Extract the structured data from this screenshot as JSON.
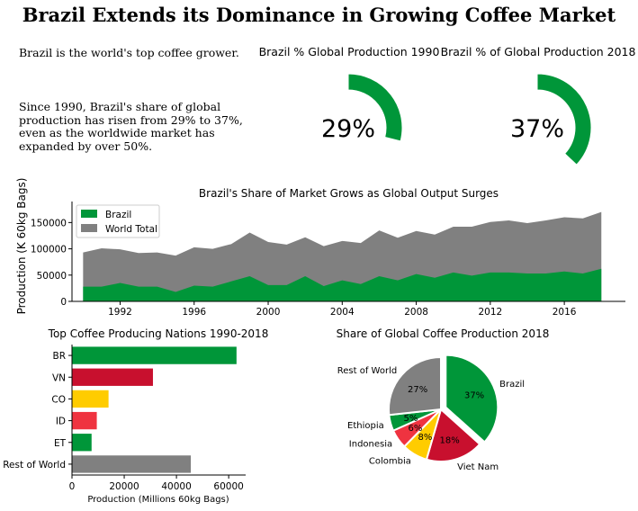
{
  "title": "Brazil Extends its Dominance in Growing Coffee Market",
  "intro": "Brazil is the world's top coffee grower.",
  "body": "Since 1990, Brazil's share of global production has risen from 29% to 37%, even as the worldwide market has expanded by over 50%.",
  "colors": {
    "green": "#009639",
    "red": "#c8102e",
    "yellow": "#ffcc00",
    "light_red": "#ef3340",
    "gray": "#808080"
  },
  "chart_data": [
    {
      "type": "pie",
      "style": "partial-ring",
      "title": "Brazil % Global Production 1990",
      "value": 29,
      "label": "29%",
      "color": "#009639"
    },
    {
      "type": "pie",
      "style": "partial-ring",
      "title": "Brazil % of Global Production 2018",
      "value": 37,
      "label": "37%",
      "color": "#009639"
    },
    {
      "type": "area",
      "title": "Brazil's Share of Market Grows as Global Output Surges",
      "ylabel": "Production (K 60kg Bags)",
      "xlabel": "",
      "x": [
        1990,
        1991,
        1992,
        1993,
        1994,
        1995,
        1996,
        1997,
        1998,
        1999,
        2000,
        2001,
        2002,
        2003,
        2004,
        2005,
        2006,
        2007,
        2008,
        2009,
        2010,
        2011,
        2012,
        2013,
        2014,
        2015,
        2016,
        2017,
        2018
      ],
      "xticks": [
        1992,
        1996,
        2000,
        2004,
        2008,
        2012,
        2016
      ],
      "yticks": [
        0,
        50000,
        100000,
        150000
      ],
      "ytick_labels": [
        "0",
        "50000",
        "100000",
        "150000"
      ],
      "xlim": [
        1989.4,
        2019.3
      ],
      "ylim": [
        0,
        190000
      ],
      "legend_placement": "upper-left",
      "series": [
        {
          "name": "Brazil",
          "color": "#009639",
          "values": [
            28000,
            28000,
            35000,
            28000,
            28000,
            18000,
            30000,
            28000,
            38000,
            48000,
            31000,
            31000,
            48000,
            29000,
            40000,
            33000,
            48000,
            40000,
            52000,
            45000,
            55000,
            49000,
            55000,
            55000,
            53000,
            53000,
            57000,
            53000,
            62000
          ]
        },
        {
          "name": "World Total",
          "color": "#808080",
          "values": [
            93000,
            101000,
            99000,
            92000,
            93000,
            87000,
            103000,
            100000,
            109000,
            131000,
            113000,
            108000,
            122000,
            105000,
            115000,
            111000,
            135000,
            121000,
            134000,
            127000,
            142000,
            142000,
            151000,
            154000,
            149000,
            154000,
            160000,
            158000,
            170000
          ]
        }
      ]
    },
    {
      "type": "bar",
      "orientation": "horizontal",
      "title": "Top Coffee Producing Nations 1990-2018",
      "xlabel": "Production (Millions 60kg Bags)",
      "categories": [
        "BR",
        "VN",
        "CO",
        "ID",
        "ET",
        "Rest of World"
      ],
      "values": [
        63000,
        31000,
        14000,
        9500,
        7500,
        45500
      ],
      "colors": [
        "#009639",
        "#c8102e",
        "#ffcc00",
        "#ef3340",
        "#009639",
        "#808080"
      ],
      "xticks": [
        0,
        20000,
        40000,
        60000
      ],
      "xtick_labels": [
        "0",
        "20000",
        "40000",
        "60000"
      ],
      "xlim": [
        0,
        66500
      ]
    },
    {
      "type": "pie",
      "title": "Share of Global Coffee Production 2018",
      "labels": [
        "Brazil",
        "Viet Nam",
        "Colombia",
        "Indonesia",
        "Ethiopia",
        "Rest of World"
      ],
      "values": [
        37,
        18,
        8,
        6,
        5,
        27
      ],
      "pct_labels": [
        "37%",
        "18%",
        "8%",
        "6%",
        "5%",
        "27%"
      ],
      "colors": [
        "#009639",
        "#c8102e",
        "#ffcc00",
        "#ef3340",
        "#009639",
        "#808080"
      ],
      "explode": [
        0.1,
        0,
        0,
        0,
        0,
        0
      ],
      "startangle": 90,
      "counterclockwise": false
    }
  ]
}
